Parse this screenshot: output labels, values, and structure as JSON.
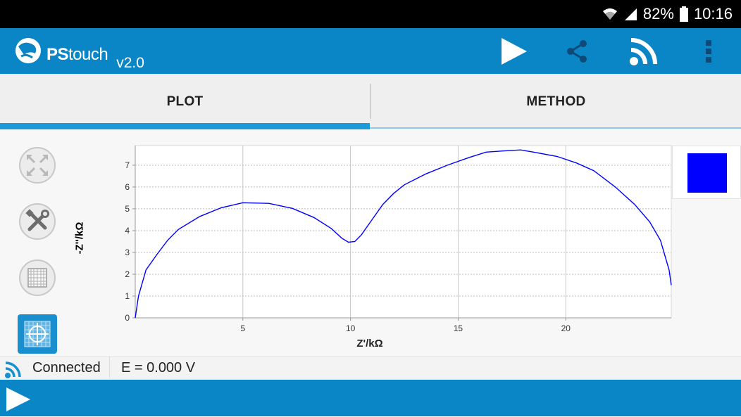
{
  "status_bar": {
    "battery": "82%",
    "time": "10:16"
  },
  "app_bar": {
    "brand_bold": "PS",
    "brand_light": "touch",
    "version": "v2.0",
    "icons": [
      "play-icon",
      "share-icon",
      "connection-icon",
      "overflow-menu-icon"
    ]
  },
  "tabs": [
    {
      "label": "PLOT",
      "selected": true
    },
    {
      "label": "METHOD",
      "selected": false
    }
  ],
  "toolbar": {
    "icons": [
      "fit-view-icon",
      "settings-tools-icon",
      "grid-icon",
      "crosshair-icon"
    ]
  },
  "chart_data": {
    "type": "line",
    "xlabel": "Z'/kΩ",
    "ylabel": "-Z''/kΩ",
    "xlim": [
      0,
      24.9
    ],
    "ylim": [
      0,
      7.9
    ],
    "xticks": [
      5,
      10,
      15,
      20
    ],
    "yticks": [
      0,
      1,
      2,
      3,
      4,
      5,
      6,
      7
    ],
    "grid": true,
    "series": [
      {
        "color": "#0000ff",
        "x": [
          0,
          0.15,
          0.5,
          1.0,
          1.5,
          2.0,
          3.0,
          4.0,
          5.0,
          6.2,
          7.3,
          8.3,
          9.1,
          9.6,
          9.9,
          10.2,
          10.5,
          11.0,
          11.5,
          12.0,
          12.5,
          13.5,
          14.5,
          15.5,
          16.3,
          17.0,
          17.9,
          18.5,
          19.6,
          20.5,
          21.3,
          22.3,
          23.2,
          23.9,
          24.4,
          24.8,
          24.9
        ],
        "y": [
          0,
          1.0,
          2.2,
          2.9,
          3.55,
          4.05,
          4.65,
          5.05,
          5.28,
          5.25,
          5.02,
          4.6,
          4.1,
          3.65,
          3.47,
          3.5,
          3.8,
          4.5,
          5.2,
          5.7,
          6.1,
          6.6,
          7.0,
          7.35,
          7.6,
          7.65,
          7.7,
          7.6,
          7.4,
          7.1,
          6.75,
          6.0,
          5.2,
          4.4,
          3.55,
          2.2,
          1.5
        ]
      }
    ],
    "legend": "right"
  },
  "legend": {
    "swatch_color": "#0000ff"
  },
  "status_row": {
    "connection": "Connected",
    "potential": "E = 0.000 V"
  },
  "bottom_bar": {
    "icon": "play-icon"
  }
}
